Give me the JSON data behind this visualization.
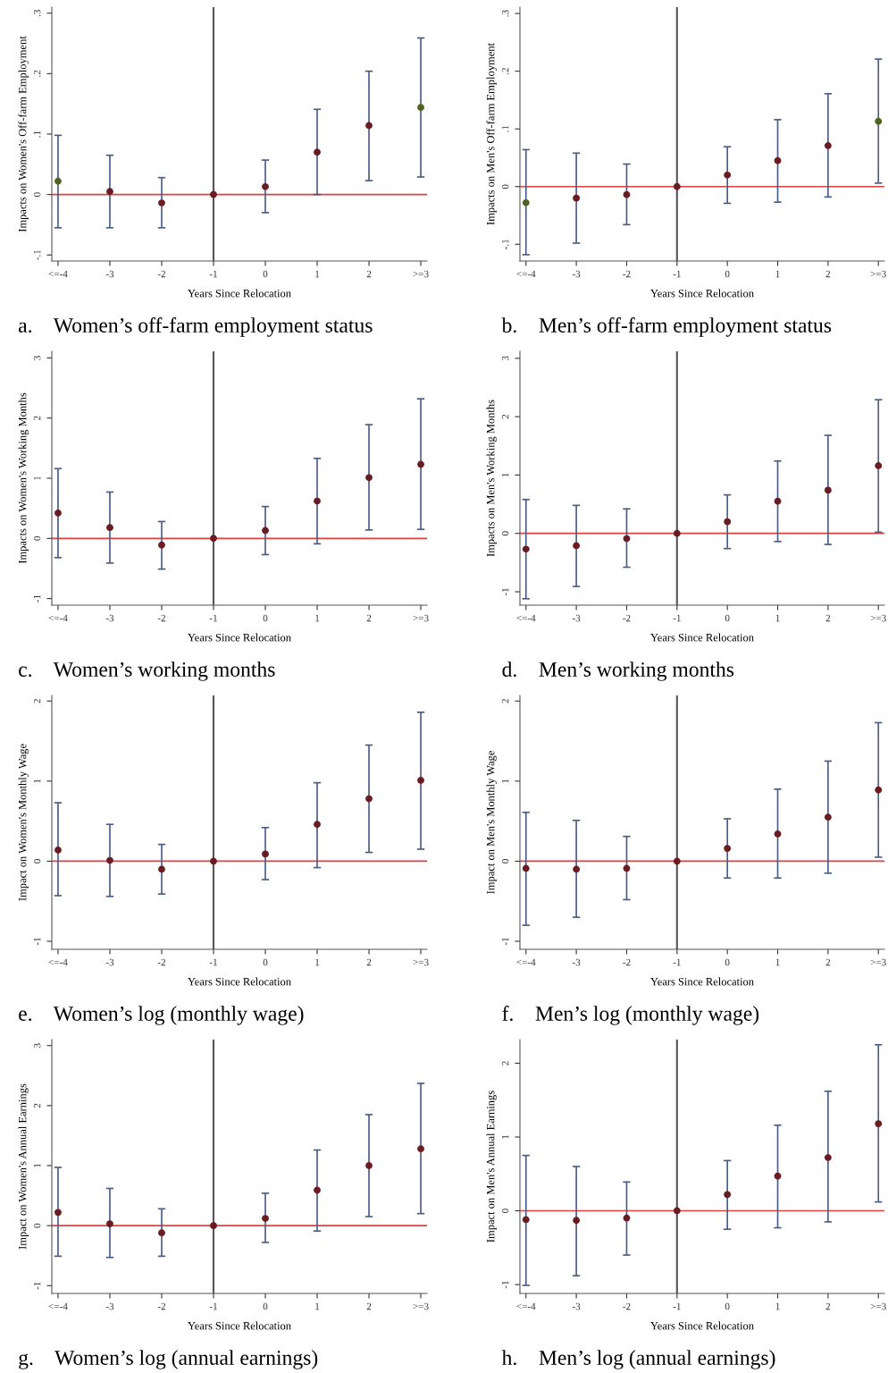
{
  "chart_data": [
    {
      "type": "scatter",
      "title": "a.    Women’s off-farm employment status",
      "xlabel": "Years Since Relocation",
      "ylabel": "Impacts on Women's Off-farm Employment",
      "categories": [
        "<=-4",
        "-3",
        "-2",
        "-1",
        "0",
        "1",
        "2",
        ">=3"
      ],
      "values": [
        0.022,
        0.005,
        -0.014,
        0,
        0.013,
        0.07,
        0.114,
        0.144
      ],
      "colors": [
        "#4e6420",
        "#6b1c22",
        "#6b1c22",
        "#6b1c22",
        "#6b1c22",
        "#6b1c22",
        "#6b1c22",
        "#4e6420"
      ],
      "errors": [
        [
          -0.055,
          0.098
        ],
        [
          -0.055,
          0.065
        ],
        [
          -0.055,
          0.028
        ],
        null,
        [
          -0.03,
          0.057
        ],
        [
          0.0,
          0.141
        ],
        [
          0.023,
          0.204
        ],
        [
          0.029,
          0.259
        ]
      ],
      "ylim": [
        -0.11,
        0.31
      ],
      "yticks": [
        {
          "value": -0.1,
          "label": "-.1"
        },
        0,
        {
          "value": 0.1,
          "label": ".1"
        },
        {
          "value": 0.2,
          "label": ".2"
        },
        {
          "value": 0.3,
          "label": ".3"
        }
      ],
      "ref_lines": [
        {
          "axis": "y",
          "value": 0,
          "color": "#e04040"
        },
        {
          "axis": "x",
          "value": "-1",
          "color": "#555555"
        }
      ],
      "marker": "circle"
    },
    {
      "type": "scatter",
      "title": "b.    Men’s off-farm employment status",
      "xlabel": "Years Since Relocation",
      "ylabel": "Impacts on Men's Off-farm Employment",
      "categories": [
        "<=-4",
        "-3",
        "-2",
        "-1",
        "0",
        "1",
        "2",
        ">=3"
      ],
      "values": [
        -0.028,
        -0.02,
        -0.014,
        0,
        0.02,
        0.045,
        0.071,
        0.113
      ],
      "colors": [
        "#4e6420",
        "#6b1c22",
        "#6b1c22",
        "#6b1c22",
        "#6b1c22",
        "#6b1c22",
        "#6b1c22",
        "#4e6420"
      ],
      "errors": [
        [
          -0.118,
          0.064
        ],
        [
          -0.098,
          0.058
        ],
        [
          -0.066,
          0.039
        ],
        null,
        [
          -0.029,
          0.069
        ],
        [
          -0.027,
          0.116
        ],
        [
          -0.018,
          0.161
        ],
        [
          0.006,
          0.221
        ]
      ],
      "ylim": [
        -0.129,
        0.311
      ],
      "yticks": [
        {
          "value": -0.1,
          "label": "-.1"
        },
        0,
        {
          "value": 0.1,
          "label": ".1"
        },
        {
          "value": 0.2,
          "label": ".2"
        },
        {
          "value": 0.3,
          "label": ".3"
        }
      ],
      "ref_lines": [
        {
          "axis": "y",
          "value": 0,
          "color": "#e04040"
        },
        {
          "axis": "x",
          "value": "-1",
          "color": "#555555"
        }
      ],
      "marker": "circle"
    },
    {
      "type": "scatter",
      "title": "c.    Women’s working months",
      "xlabel": "Years Since Relocation",
      "ylabel": "Impacts on Women's Working Months",
      "categories": [
        "<=-4",
        "-3",
        "-2",
        "-1",
        "0",
        "1",
        "2",
        ">=3"
      ],
      "values": [
        0.42,
        0.18,
        -0.11,
        0,
        0.13,
        0.62,
        1.01,
        1.23
      ],
      "colors": [
        "#6b1c22",
        "#6b1c22",
        "#6b1c22",
        "#6b1c22",
        "#6b1c22",
        "#6b1c22",
        "#6b1c22",
        "#6b1c22"
      ],
      "errors": [
        [
          -0.32,
          1.16
        ],
        [
          -0.41,
          0.77
        ],
        [
          -0.51,
          0.28
        ],
        null,
        [
          -0.27,
          0.53
        ],
        [
          -0.09,
          1.33
        ],
        [
          0.14,
          1.89
        ],
        [
          0.15,
          2.32
        ]
      ],
      "ylim": [
        -1.11,
        3.11
      ],
      "yticks": [
        -1,
        0,
        1,
        2,
        3
      ],
      "ref_lines": [
        {
          "axis": "y",
          "value": 0,
          "color": "#e04040"
        },
        {
          "axis": "x",
          "value": "-1",
          "color": "#555555"
        }
      ],
      "marker": "circle"
    },
    {
      "type": "scatter",
      "title": "d.    Men’s working months",
      "xlabel": "Years Since Relocation",
      "ylabel": "Impacts on Men's Working Months",
      "categories": [
        "<=-4",
        "-3",
        "-2",
        "-1",
        "0",
        "1",
        "2",
        ">=3"
      ],
      "values": [
        -0.27,
        -0.21,
        -0.09,
        0,
        0.2,
        0.55,
        0.74,
        1.16
      ],
      "colors": [
        "#6b1c22",
        "#6b1c22",
        "#6b1c22",
        "#6b1c22",
        "#6b1c22",
        "#6b1c22",
        "#6b1c22",
        "#6b1c22"
      ],
      "errors": [
        [
          -1.12,
          0.58
        ],
        [
          -0.91,
          0.48
        ],
        [
          -0.58,
          0.42
        ],
        null,
        [
          -0.26,
          0.66
        ],
        [
          -0.14,
          1.24
        ],
        [
          -0.19,
          1.68
        ],
        [
          0.02,
          2.29
        ]
      ],
      "ylim": [
        -1.23,
        3.12
      ],
      "yticks": [
        -1,
        0,
        1,
        2,
        3
      ],
      "ref_lines": [
        {
          "axis": "y",
          "value": 0,
          "color": "#e04040"
        },
        {
          "axis": "x",
          "value": "-1",
          "color": "#555555"
        }
      ],
      "marker": "circle"
    },
    {
      "type": "scatter",
      "title": "e.    Women’s log (monthly wage)",
      "xlabel": "Years Since Relocation",
      "ylabel": "Impact on Women's Monthly Wage",
      "categories": [
        "<=-4",
        "-3",
        "-2",
        "-1",
        "0",
        "1",
        "2",
        ">=3"
      ],
      "values": [
        0.14,
        0.01,
        -0.1,
        0,
        0.09,
        0.46,
        0.78,
        1.01
      ],
      "colors": [
        "#6b1c22",
        "#6b1c22",
        "#6b1c22",
        "#6b1c22",
        "#6b1c22",
        "#6b1c22",
        "#6b1c22",
        "#6b1c22"
      ],
      "errors": [
        [
          -0.43,
          0.73
        ],
        [
          -0.44,
          0.46
        ],
        [
          -0.41,
          0.21
        ],
        null,
        [
          -0.23,
          0.42
        ],
        [
          -0.08,
          0.98
        ],
        [
          0.11,
          1.45
        ],
        [
          0.15,
          1.86
        ]
      ],
      "ylim": [
        -1.1,
        2.07
      ],
      "yticks": [
        -1,
        0,
        1,
        2
      ],
      "ref_lines": [
        {
          "axis": "y",
          "value": 0,
          "color": "#e04040"
        },
        {
          "axis": "x",
          "value": "-1",
          "color": "#555555"
        }
      ],
      "marker": "circle"
    },
    {
      "type": "scatter",
      "title": "f.    Men’s log (monthly wage)",
      "xlabel": "Years Since Relocation",
      "ylabel": "Impact on Men's Monthly Wage",
      "categories": [
        "<=-4",
        "-3",
        "-2",
        "-1",
        "0",
        "1",
        "2",
        ">=3"
      ],
      "values": [
        -0.09,
        -0.1,
        -0.09,
        0,
        0.16,
        0.34,
        0.55,
        0.89
      ],
      "colors": [
        "#6b1c22",
        "#6b1c22",
        "#6b1c22",
        "#6b1c22",
        "#6b1c22",
        "#6b1c22",
        "#6b1c22",
        "#6b1c22"
      ],
      "errors": [
        [
          -0.8,
          0.61
        ],
        [
          -0.7,
          0.51
        ],
        [
          -0.48,
          0.31
        ],
        null,
        [
          -0.21,
          0.53
        ],
        [
          -0.21,
          0.9
        ],
        [
          -0.15,
          1.25
        ],
        [
          0.05,
          1.73
        ]
      ],
      "ylim": [
        -1.1,
        2.07
      ],
      "yticks": [
        -1,
        0,
        1,
        2
      ],
      "ref_lines": [
        {
          "axis": "y",
          "value": 0,
          "color": "#e04040"
        },
        {
          "axis": "x",
          "value": "-1",
          "color": "#555555"
        }
      ],
      "marker": "circle"
    },
    {
      "type": "scatter",
      "title": "g.    Women’s log (annual earnings)",
      "xlabel": "Years Since Relocation",
      "ylabel": "Impact on Women's Annual Earnings",
      "categories": [
        "<=-4",
        "-3",
        "-2",
        "-1",
        "0",
        "1",
        "2",
        ">=3"
      ],
      "values": [
        0.22,
        0.03,
        -0.12,
        0,
        0.12,
        0.59,
        1.0,
        1.28
      ],
      "colors": [
        "#6b1c22",
        "#6b1c22",
        "#6b1c22",
        "#6b1c22",
        "#6b1c22",
        "#6b1c22",
        "#6b1c22",
        "#6b1c22"
      ],
      "errors": [
        [
          -0.51,
          0.97
        ],
        [
          -0.53,
          0.62
        ],
        [
          -0.51,
          0.28
        ],
        null,
        [
          -0.28,
          0.54
        ],
        [
          -0.09,
          1.26
        ],
        [
          0.15,
          1.85
        ],
        [
          0.2,
          2.37
        ]
      ],
      "ylim": [
        -1.13,
        3.1
      ],
      "yticks": [
        -1,
        0,
        1,
        2,
        3
      ],
      "ref_lines": [
        {
          "axis": "y",
          "value": 0,
          "color": "#e04040"
        },
        {
          "axis": "x",
          "value": "-1",
          "color": "#555555"
        }
      ],
      "marker": "circle"
    },
    {
      "type": "scatter",
      "title": "h.    Men’s log (annual earnings)",
      "xlabel": "Years Since Relocation",
      "ylabel": "Impact on Men's Annual Earnings",
      "categories": [
        "<=-4",
        "-3",
        "-2",
        "-1",
        "0",
        "1",
        "2",
        ">=3"
      ],
      "values": [
        -0.12,
        -0.13,
        -0.1,
        0,
        0.22,
        0.47,
        0.72,
        1.18
      ],
      "colors": [
        "#6b1c22",
        "#6b1c22",
        "#6b1c22",
        "#6b1c22",
        "#6b1c22",
        "#6b1c22",
        "#6b1c22",
        "#6b1c22"
      ],
      "errors": [
        [
          -1.01,
          0.75
        ],
        [
          -0.88,
          0.6
        ],
        [
          -0.6,
          0.39
        ],
        null,
        [
          -0.25,
          0.68
        ],
        [
          -0.23,
          1.16
        ],
        [
          -0.15,
          1.62
        ],
        [
          0.12,
          2.25
        ]
      ],
      "ylim": [
        -1.12,
        2.32
      ],
      "yticks": [
        -1,
        0,
        1,
        2
      ],
      "ref_lines": [
        {
          "axis": "y",
          "value": 0,
          "color": "#e04040"
        },
        {
          "axis": "x",
          "value": "-1",
          "color": "#555555"
        }
      ],
      "marker": "circle"
    }
  ]
}
